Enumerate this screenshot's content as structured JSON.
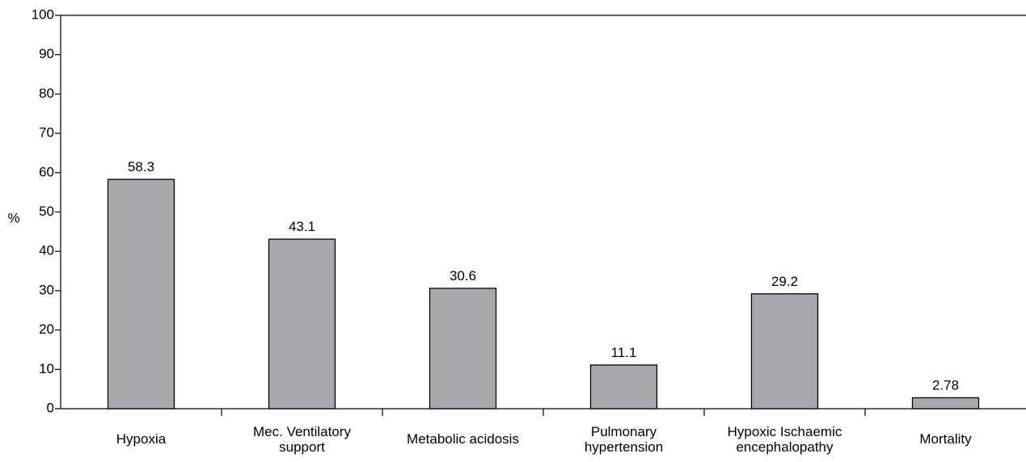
{
  "chart_data": {
    "type": "bar",
    "ylabel": "%",
    "ylim": [
      0,
      100
    ],
    "yticks": [
      "0",
      "10",
      "20",
      "30",
      "40",
      "50",
      "60",
      "70",
      "80",
      "90",
      "100"
    ],
    "grid": false,
    "bar_color": "#a7a9ac",
    "categories": [
      [
        "Hypoxia"
      ],
      [
        "Mec. Ventilatory",
        "support"
      ],
      [
        "Metabolic acidosis"
      ],
      [
        "Pulmonary",
        "hypertension"
      ],
      [
        "Hypoxic Ischaemic",
        "encephalopathy"
      ],
      [
        "Mortality"
      ]
    ],
    "values": [
      58.3,
      43.1,
      30.6,
      11.1,
      29.2,
      2.78
    ],
    "value_labels": [
      "58.3",
      "43.1",
      "30.6",
      "11.1",
      "29.2",
      "2.78"
    ]
  }
}
